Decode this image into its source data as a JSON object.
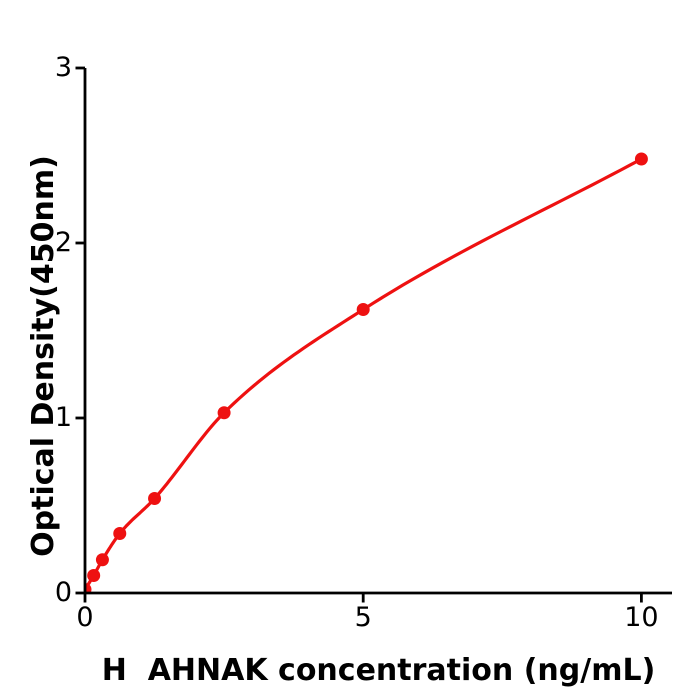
{
  "figure": {
    "background": "#ffffff",
    "axis_color": "#000000"
  },
  "chart_data": {
    "type": "line",
    "title": "",
    "x": [
      0,
      0.156,
      0.313,
      0.625,
      1.25,
      2.5,
      5,
      10
    ],
    "y": [
      0.02,
      0.1,
      0.19,
      0.34,
      0.54,
      1.03,
      1.62,
      2.48
    ],
    "xlabel": "H  AHNAK concentration (ng/mL)",
    "ylabel": "Optical Density(450nm)",
    "xlim": [
      0,
      10.55
    ],
    "ylim": [
      0,
      3
    ],
    "xticks": [
      0,
      5,
      10
    ],
    "yticks": [
      0,
      1,
      2,
      3
    ],
    "grid": false,
    "legend": null,
    "line_color": "#ee1111",
    "marker_color": "#ee1111",
    "marker": "circle",
    "marker_radius": 6.5,
    "line_width": 3.2
  }
}
